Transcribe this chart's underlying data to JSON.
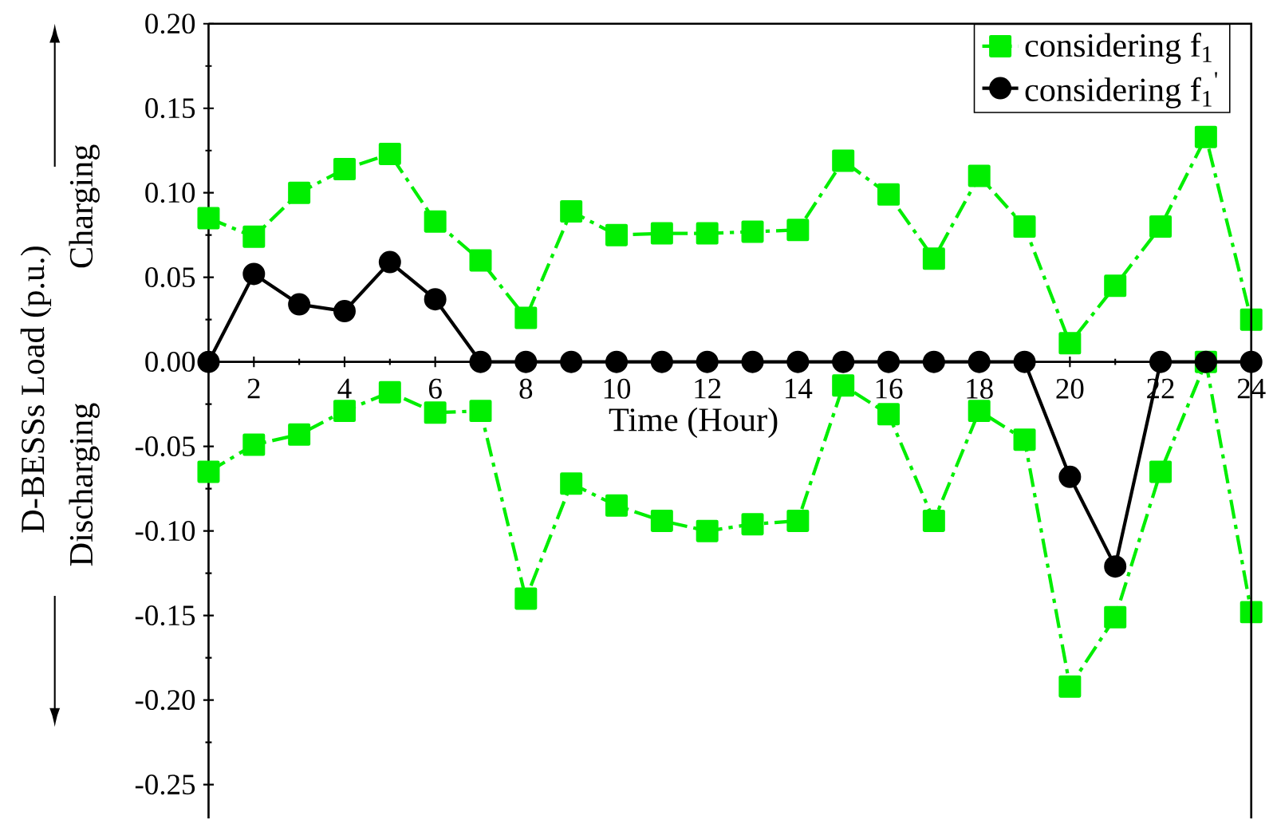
{
  "chart_data": {
    "type": "line",
    "xlabel": "Time (Hour)",
    "ylabel": "D-BESSs Load (p.u.)",
    "annotations": [
      "Charging",
      "Discharging"
    ],
    "x": [
      1,
      2,
      3,
      4,
      5,
      6,
      7,
      8,
      9,
      10,
      11,
      12,
      13,
      14,
      15,
      16,
      17,
      18,
      19,
      20,
      21,
      22,
      23,
      24
    ],
    "series": [
      {
        "name": "considering f$_{1}$",
        "color": "#00ee00",
        "marker": "square",
        "line_style": "dashdot",
        "values": [
          0.085,
          0.074,
          0.1,
          0.114,
          0.123,
          0.083,
          0.06,
          0.026,
          0.089,
          0.075,
          0.076,
          0.076,
          0.077,
          0.078,
          0.119,
          0.099,
          0.061,
          0.11,
          0.08,
          0.011,
          0.045,
          0.08,
          0.133,
          0.025
        ]
      },
      {
        "color": "#00ee00",
        "marker": "square",
        "line_style": "dashdot",
        "values": [
          -0.065,
          -0.049,
          -0.043,
          -0.029,
          -0.018,
          -0.03,
          -0.029,
          -0.14,
          -0.072,
          -0.085,
          -0.094,
          -0.1,
          -0.096,
          -0.094,
          -0.014,
          -0.031,
          -0.094,
          -0.029,
          -0.046,
          -0.192,
          -0.151,
          -0.065,
          0.0,
          -0.148
        ]
      },
      {
        "name": "considering f$_{1}$$^{'}$",
        "color": "#000000",
        "marker": "circle",
        "line_style": "solid",
        "values": [
          0,
          0.052,
          0.034,
          0.03,
          0.059,
          0.037,
          0,
          0,
          0,
          0,
          0,
          0,
          0,
          0,
          0,
          0,
          0,
          0,
          0,
          -0.068,
          -0.121,
          0,
          0,
          0
        ]
      }
    ],
    "xlim": [
      1,
      24
    ],
    "ylim": [
      -0.27,
      0.2
    ],
    "xticks": [
      2,
      4,
      6,
      8,
      10,
      12,
      14,
      16,
      18,
      20,
      22,
      24
    ],
    "yticks": [
      {
        "value": -0.25,
        "label": "-0.25"
      },
      {
        "value": -0.2,
        "label": "-0.20"
      },
      {
        "value": -0.15,
        "label": "-0.15"
      },
      {
        "value": -0.1,
        "label": "-0.10"
      },
      {
        "value": -0.05,
        "label": "-0.05"
      },
      {
        "value": 0,
        "label": "0.00"
      },
      {
        "value": 0.05,
        "label": "0.05"
      },
      {
        "value": 0.1,
        "label": "0.10"
      },
      {
        "value": 0.15,
        "label": "0.15"
      },
      {
        "value": 0.2,
        "label": "0.20"
      }
    ],
    "legend": "top right",
    "grid": false
  }
}
